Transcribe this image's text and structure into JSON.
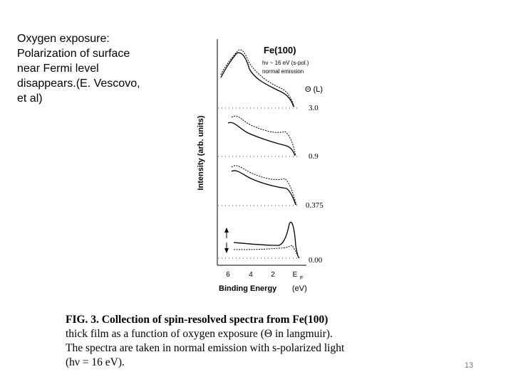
{
  "slide": {
    "text_lines": [
      "Oxygen exposure:",
      "Polarization of surface",
      "near Fermi level",
      "disappears.(E. Vescovo,",
      "et al)"
    ],
    "page_number": "13"
  },
  "figure": {
    "title": "Fe(100)",
    "params": "hν ~ 16 eV (s-pol.)",
    "emission": "normal emission",
    "theta_label": "Θ (L)",
    "ylabel": "Intensity (arb. units)",
    "xlabel": "Binding Energy",
    "xunit": "(eV)",
    "xticks": [
      "6",
      "4",
      "2",
      "E"
    ],
    "xtick_sub": "F",
    "panels": [
      {
        "exposure": "3.0"
      },
      {
        "exposure": "0.9"
      },
      {
        "exposure": "0.375"
      },
      {
        "exposure": "0.00"
      }
    ]
  },
  "caption": {
    "lines": [
      "FIG. 3.  Collection of spin-resolved spectra from Fe(100)",
      "thick film as a function of oxygen exposure (Θ in langmuir).",
      "The spectra are taken in normal emission with s-polarized light",
      "(hν = 16 eV)."
    ]
  }
}
